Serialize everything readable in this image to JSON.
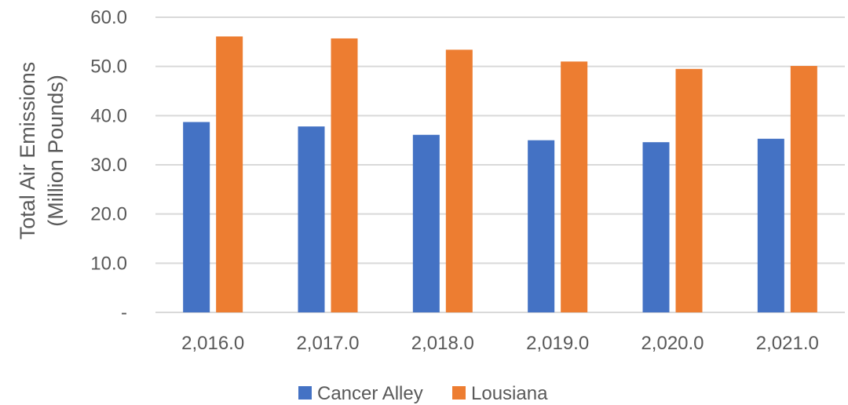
{
  "chart_data": {
    "type": "bar",
    "categories": [
      "2,016.0",
      "2,017.0",
      "2,018.0",
      "2,019.0",
      "2,020.0",
      "2,021.0"
    ],
    "series": [
      {
        "name": "Cancer Alley",
        "color": "#4472C4",
        "values": [
          38.7,
          37.8,
          36.1,
          35.0,
          34.6,
          35.3
        ]
      },
      {
        "name": "Lousiana",
        "color": "#ED7D31",
        "values": [
          56.1,
          55.7,
          53.4,
          51.0,
          49.5,
          50.1
        ]
      }
    ],
    "title": "",
    "xlabel": "",
    "ylabel_lines": [
      "Total Air Emissions",
      "(Million Pounds)"
    ],
    "ylim": [
      0,
      60
    ],
    "yticks": [
      0,
      10,
      20,
      30,
      40,
      50,
      60
    ],
    "ytick_labels": [
      "-",
      "10.0",
      "20.0",
      "30.0",
      "40.0",
      "50.0",
      "60.0"
    ],
    "grid": true,
    "gridline_color": "#D9D9D9",
    "legend_position": "bottom"
  }
}
